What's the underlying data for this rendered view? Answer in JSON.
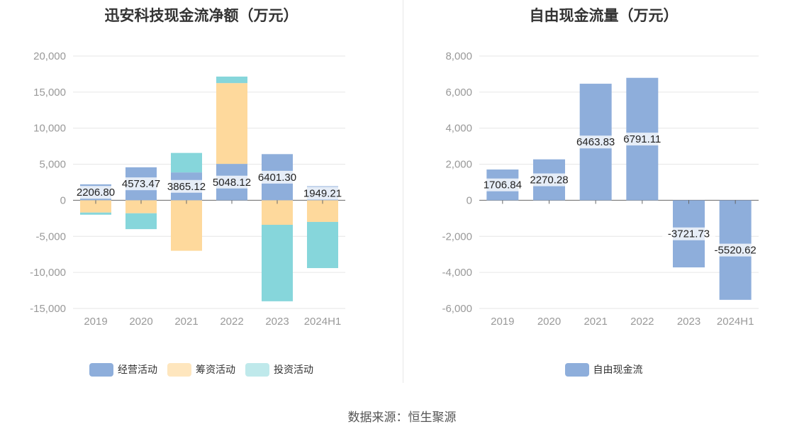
{
  "charts": {
    "left": {
      "title": "迅安科技现金流净额（万元）",
      "legend": [
        {
          "label": "经营活动",
          "color": "#8eaedb"
        },
        {
          "label": "筹资活动",
          "color": "#fed99c"
        },
        {
          "label": "投资活动",
          "color": "#86d6db"
        }
      ]
    },
    "right": {
      "title": "自由现金流量（万元）",
      "legend": [
        {
          "label": "自由现金流",
          "color": "#8eaedb"
        }
      ]
    }
  },
  "footer": {
    "source": "数据来源：恒生聚源"
  },
  "chart_data": [
    {
      "type": "bar",
      "stacked": true,
      "title": "迅安科技现金流净额（万元）",
      "categories": [
        "2019",
        "2020",
        "2021",
        "2022",
        "2023",
        "2024H1"
      ],
      "ylim": [
        -15000,
        20000
      ],
      "yticks": [
        20000,
        15000,
        10000,
        5000,
        0,
        -5000,
        -10000,
        -15000
      ],
      "ytick_labels": [
        "20,000",
        "15,000",
        "10,000",
        "5,000",
        "0",
        "-5,000",
        "-10,000",
        "-15,000"
      ],
      "grid": true,
      "legend_position": "bottom",
      "series": [
        {
          "name": "经营活动",
          "color": "#8eaedb",
          "values": [
            2206.8,
            4573.47,
            3865.12,
            5048.12,
            6401.3,
            1949.21
          ]
        },
        {
          "name": "筹资活动",
          "color": "#fed99c",
          "values": [
            -1700,
            -1800,
            -7000,
            11200,
            -3400,
            -3000
          ]
        },
        {
          "name": "投资活动",
          "color": "#86d6db",
          "values": [
            -300,
            -2200,
            2700,
            900,
            -10600,
            -6400
          ]
        }
      ],
      "data_labels": [
        "2206.80",
        "4573.47",
        "3865.12",
        "5048.12",
        "6401.30",
        "1949.21"
      ]
    },
    {
      "type": "bar",
      "title": "自由现金流量（万元）",
      "categories": [
        "2019",
        "2020",
        "2021",
        "2022",
        "2023",
        "2024H1"
      ],
      "ylim": [
        -6000,
        8000
      ],
      "yticks": [
        8000,
        6000,
        4000,
        2000,
        0,
        -2000,
        -4000,
        -6000
      ],
      "ytick_labels": [
        "8,000",
        "6,000",
        "4,000",
        "2,000",
        "0",
        "-2,000",
        "-4,000",
        "-6,000"
      ],
      "grid": true,
      "legend_position": "bottom",
      "series": [
        {
          "name": "自由现金流",
          "color": "#8eaedb",
          "values": [
            1706.84,
            2270.28,
            6463.83,
            6791.11,
            -3721.73,
            -5520.62
          ]
        }
      ],
      "data_labels": [
        "1706.84",
        "2270.28",
        "6463.83",
        "6791.11",
        "-3721.73",
        "-5520.62"
      ]
    }
  ]
}
